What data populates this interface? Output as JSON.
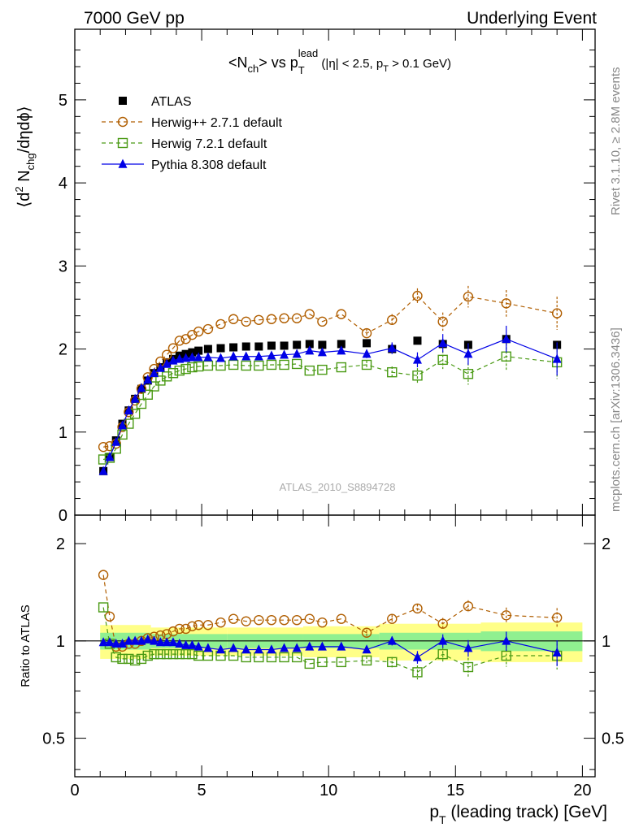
{
  "header": {
    "left": "7000 GeV pp",
    "right": "Underlying Event"
  },
  "side_labels": {
    "rivet": "Rivet 3.1.10, ≥ 2.8M events",
    "mcplots": "mcplots.cern.ch [arXiv:1306.3436]"
  },
  "watermark": "ATLAS_2010_S8894728",
  "chart_data": [
    {
      "type": "scatter",
      "panel": "main",
      "title": {
        "p1": "<N",
        "p2": "ch",
        "p3": "> vs p",
        "p4": "T",
        "p5": "lead",
        "p6": " (|η| < 2.5, p",
        "p7": "T",
        "p8": " > 0.1 GeV)"
      },
      "ylabel": {
        "p1": "⟨d",
        "p2": "2",
        "p3": " N",
        "p4": "chg",
        "p5": "/dηdϕ⟩"
      },
      "xlim": [
        0,
        20.5
      ],
      "ylim": [
        0,
        5.85
      ],
      "yticks": [
        {
          "v": 0,
          "label": "0"
        },
        {
          "v": 1,
          "label": "1"
        },
        {
          "v": 2,
          "label": "2"
        },
        {
          "v": 3,
          "label": "3"
        },
        {
          "v": 4,
          "label": "4"
        },
        {
          "v": 5,
          "label": "5"
        }
      ],
      "legend_position": "top-left",
      "x": [
        1.125,
        1.375,
        1.625,
        1.875,
        2.125,
        2.375,
        2.625,
        2.875,
        3.125,
        3.375,
        3.625,
        3.875,
        4.125,
        4.375,
        4.625,
        4.875,
        5.25,
        5.75,
        6.25,
        6.75,
        7.25,
        7.75,
        8.25,
        8.75,
        9.25,
        9.75,
        10.5,
        11.5,
        12.5,
        13.5,
        14.5,
        15.5,
        17.0,
        19.0
      ],
      "series": [
        {
          "name": "ATLAS",
          "style": "data",
          "color": "#000000",
          "values": [
            0.53,
            0.7,
            0.9,
            1.1,
            1.26,
            1.4,
            1.52,
            1.62,
            1.71,
            1.78,
            1.84,
            1.88,
            1.92,
            1.94,
            1.96,
            1.98,
            2.0,
            2.01,
            2.02,
            2.03,
            2.03,
            2.04,
            2.04,
            2.05,
            2.06,
            2.05,
            2.06,
            2.07,
            2.0,
            2.1,
            2.06,
            2.05,
            2.12,
            2.05
          ]
        },
        {
          "name": "Herwig++ 2.7.1 default",
          "style": "circle",
          "color": "#b05e00",
          "values": [
            0.82,
            0.83,
            0.86,
            1.06,
            1.24,
            1.38,
            1.52,
            1.66,
            1.76,
            1.85,
            1.93,
            2.01,
            2.1,
            2.12,
            2.17,
            2.21,
            2.24,
            2.3,
            2.36,
            2.33,
            2.35,
            2.36,
            2.37,
            2.37,
            2.42,
            2.33,
            2.42,
            2.19,
            2.35,
            2.64,
            2.33,
            2.63,
            2.55,
            2.43
          ]
        },
        {
          "name": "Herwig 7.2.1 default",
          "style": "square",
          "color": "#4a9a14",
          "values": [
            0.67,
            0.69,
            0.8,
            0.97,
            1.1,
            1.22,
            1.34,
            1.45,
            1.55,
            1.62,
            1.67,
            1.71,
            1.74,
            1.76,
            1.78,
            1.79,
            1.8,
            1.8,
            1.81,
            1.8,
            1.8,
            1.81,
            1.81,
            1.82,
            1.74,
            1.75,
            1.78,
            1.81,
            1.72,
            1.68,
            1.87,
            1.7,
            1.91,
            1.84
          ]
        },
        {
          "name": "Pythia 8.308 default",
          "style": "triangle",
          "color": "#0000e6",
          "values": [
            0.53,
            0.7,
            0.88,
            1.08,
            1.26,
            1.4,
            1.53,
            1.63,
            1.71,
            1.77,
            1.82,
            1.86,
            1.88,
            1.89,
            1.9,
            1.9,
            1.9,
            1.89,
            1.91,
            1.91,
            1.91,
            1.92,
            1.93,
            1.94,
            1.98,
            1.96,
            1.98,
            1.94,
            2.01,
            1.87,
            2.07,
            1.94,
            2.12,
            1.88
          ]
        }
      ]
    },
    {
      "type": "line",
      "panel": "ratio",
      "ylabel": "Ratio to ATLAS",
      "xlabel": {
        "p1": "p",
        "p2": "T",
        "p3": " (leading track) [GeV]"
      },
      "xlim": [
        0,
        20.5
      ],
      "ylim": [
        0.38,
        2.45
      ],
      "xticks": [
        {
          "v": 0,
          "label": "0"
        },
        {
          "v": 5,
          "label": "5"
        },
        {
          "v": 10,
          "label": "10"
        },
        {
          "v": 15,
          "label": "15"
        },
        {
          "v": 20,
          "label": "20"
        }
      ],
      "yticks": [
        {
          "v": 0.5,
          "label": "0.5"
        },
        {
          "v": 1,
          "label": "1"
        },
        {
          "v": 2,
          "label": "2"
        }
      ],
      "reference_line": 1,
      "x": [
        1.125,
        1.375,
        1.625,
        1.875,
        2.125,
        2.375,
        2.625,
        2.875,
        3.125,
        3.375,
        3.625,
        3.875,
        4.125,
        4.375,
        4.625,
        4.875,
        5.25,
        5.75,
        6.25,
        6.75,
        7.25,
        7.75,
        8.25,
        8.75,
        9.25,
        9.75,
        10.5,
        11.5,
        12.5,
        13.5,
        14.5,
        15.5,
        17.0,
        19.0
      ],
      "series": [
        {
          "name": "Herwig++ 2.7.1 default",
          "style": "circle",
          "color": "#b05e00",
          "values": [
            1.6,
            1.19,
            0.96,
            0.96,
            0.98,
            0.98,
            1.0,
            1.02,
            1.03,
            1.04,
            1.05,
            1.07,
            1.09,
            1.09,
            1.11,
            1.12,
            1.12,
            1.14,
            1.17,
            1.15,
            1.16,
            1.16,
            1.16,
            1.16,
            1.17,
            1.14,
            1.17,
            1.06,
            1.17,
            1.26,
            1.13,
            1.28,
            1.2,
            1.18
          ]
        },
        {
          "name": "Herwig 7.2.1 default",
          "style": "square",
          "color": "#4a9a14",
          "values": [
            1.27,
            0.98,
            0.89,
            0.88,
            0.88,
            0.87,
            0.88,
            0.9,
            0.91,
            0.91,
            0.91,
            0.91,
            0.91,
            0.91,
            0.91,
            0.9,
            0.9,
            0.9,
            0.9,
            0.89,
            0.89,
            0.89,
            0.89,
            0.89,
            0.85,
            0.86,
            0.86,
            0.87,
            0.86,
            0.8,
            0.91,
            0.83,
            0.9,
            0.9
          ]
        },
        {
          "name": "Pythia 8.308 default",
          "style": "triangle",
          "color": "#0000e6",
          "values": [
            0.99,
            0.99,
            0.98,
            0.98,
            1.0,
            1.0,
            1.0,
            1.01,
            1.0,
            0.99,
            0.99,
            0.99,
            0.98,
            0.97,
            0.97,
            0.96,
            0.95,
            0.94,
            0.95,
            0.94,
            0.94,
            0.94,
            0.95,
            0.95,
            0.96,
            0.96,
            0.96,
            0.94,
            1.0,
            0.89,
            1.0,
            0.95,
            1.0,
            0.92
          ]
        }
      ],
      "uncertainty_bands": {
        "x_edges": [
          1.0,
          3.0,
          6.0,
          9.0,
          12.0,
          16.0,
          20.0
        ],
        "inner": [
          0.06,
          0.05,
          0.05,
          0.05,
          0.06,
          0.07
        ],
        "outer": [
          0.12,
          0.1,
          0.1,
          0.11,
          0.13,
          0.14
        ]
      }
    }
  ]
}
